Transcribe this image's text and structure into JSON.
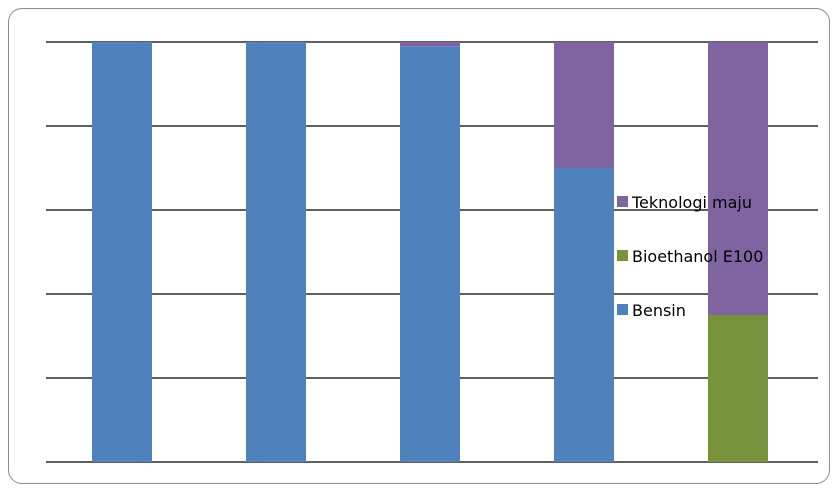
{
  "chart_data": {
    "type": "bar",
    "stacked": true,
    "categories": [
      "",
      "",
      "",
      "",
      ""
    ],
    "series": [
      {
        "name": "Bensin",
        "color": "#4F81BD",
        "values": [
          100,
          100,
          99,
          70,
          0
        ]
      },
      {
        "name": "Bioethanol E100",
        "color": "#77933C",
        "values": [
          0,
          0,
          0,
          0,
          35
        ]
      },
      {
        "name": "Teknologi maju",
        "color": "#8064A2",
        "values": [
          0,
          0,
          1,
          30,
          65
        ]
      }
    ],
    "ylim": [
      0,
      100
    ],
    "gridlines": [
      0,
      20,
      40,
      60,
      80,
      100
    ],
    "grid": true,
    "title": "",
    "xlabel": "",
    "ylabel": "",
    "legend": {
      "position": "right",
      "order": [
        "Teknologi maju",
        "Bioethanol E100",
        "Bensin"
      ]
    }
  }
}
